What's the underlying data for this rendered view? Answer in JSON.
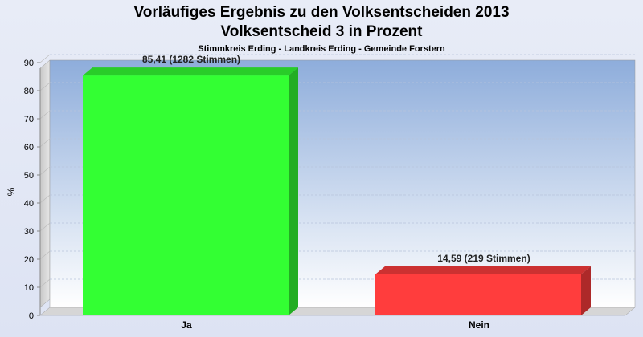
{
  "chart_data": {
    "type": "bar",
    "title": "Vorläufiges Ergebnis zu den Volksentscheiden 2013",
    "title2": "Volksentscheid 3 in Prozent",
    "subtitle": "Stimmkreis Erding - Landkreis Erding - Gemeinde Forstern",
    "ylabel": "%",
    "ylim": [
      0,
      100
    ],
    "yticks": [
      0,
      10,
      20,
      30,
      40,
      50,
      60,
      70,
      80,
      90
    ],
    "grid": true,
    "categories": [
      "Ja",
      "Nein"
    ],
    "values": [
      85.41,
      14.59
    ],
    "data_labels": [
      "85,41 (1282 Stimmen)",
      "14,59 (219 Stimmen)"
    ],
    "colors": [
      "#33ff33",
      "#ff3d3d"
    ]
  }
}
